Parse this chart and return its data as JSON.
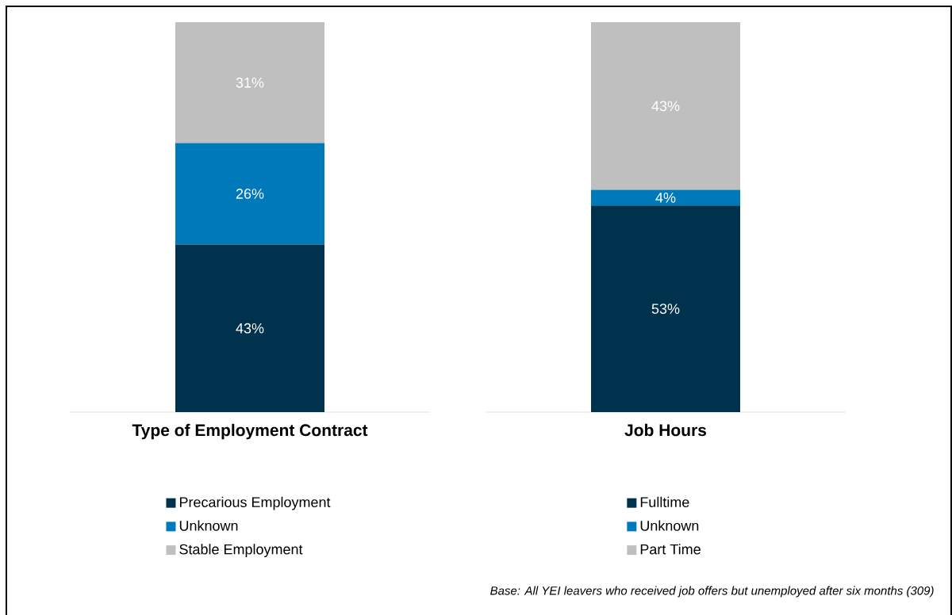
{
  "chart_data": [
    {
      "type": "bar",
      "stacked": true,
      "categories": [
        null
      ],
      "xlabel": "Type of Employment Contract",
      "legend": "bottom",
      "series": [
        {
          "name": "Precarious Employment",
          "color": "#00324d",
          "values": [
            43
          ],
          "value_labels": [
            "43%"
          ]
        },
        {
          "name": "Unknown",
          "color": "#0079bb",
          "values": [
            26
          ],
          "value_labels": [
            "26%"
          ]
        },
        {
          "name": "Stable Employment",
          "color": "#bfbfbf",
          "values": [
            31
          ],
          "value_labels": [
            "31%"
          ]
        }
      ]
    },
    {
      "type": "bar",
      "stacked": true,
      "categories": [
        null
      ],
      "xlabel": "Job Hours",
      "legend": "bottom",
      "series": [
        {
          "name": "Fulltime",
          "color": "#00324d",
          "values": [
            53
          ],
          "value_labels": [
            "53%"
          ]
        },
        {
          "name": "Unknown",
          "color": "#0079bb",
          "values": [
            4
          ],
          "value_labels": [
            "4%"
          ]
        },
        {
          "name": "Part Time",
          "color": "#bfbfbf",
          "values": [
            43
          ],
          "value_labels": [
            "43%"
          ]
        }
      ],
      "annotations": [
        "Base: All YEI leavers who received job offers but unemployed after six months (309)"
      ]
    }
  ]
}
